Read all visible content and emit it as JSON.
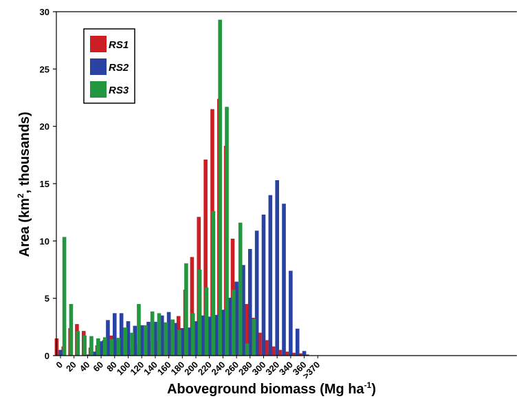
{
  "chart_data": {
    "type": "bar",
    "title": "",
    "xlabel": "Aboveground biomass (Mg ha",
    "xlabel_sup": "-1",
    "xlabel_end": ")",
    "ylabel_pre": "Area (km",
    "ylabel_sup": "2",
    "ylabel_post": ", thousands)",
    "ylim": [
      0,
      30
    ],
    "yticks": [
      "0",
      "5",
      "10",
      "15",
      "20",
      "25",
      "30"
    ],
    "xticks": [
      "0",
      "20",
      "40",
      "60",
      "80",
      "100",
      "120",
      "140",
      "160",
      "180",
      "200",
      "220",
      "240",
      "260",
      "280",
      "300",
      "320",
      "340",
      "360",
      ">370"
    ],
    "categories": [
      "0",
      "10",
      "20",
      "30",
      "40",
      "50",
      "60",
      "70",
      "80",
      "90",
      "100",
      "110",
      "120",
      "130",
      "140",
      "150",
      "160",
      "170",
      "180",
      "190",
      "200",
      "210",
      "220",
      "230",
      "240",
      "250",
      "260",
      "270",
      "280",
      "290",
      "300",
      "310",
      "320",
      "330",
      "340",
      "350",
      "360",
      "370"
    ],
    "legend_position": "top-left",
    "grid": false,
    "series": [
      {
        "name": "RS1",
        "color": "#cc1f24",
        "values": [
          1.5,
          0.8,
          2.4,
          2.75,
          2.15,
          0.7,
          0.9,
          1.35,
          1.75,
          1.4,
          0.5,
          0.6,
          0.95,
          1.2,
          1.3,
          1.25,
          1.55,
          2.15,
          3.45,
          5.75,
          8.6,
          12.1,
          17.1,
          21.5,
          22.4,
          18.3,
          10.2,
          6.0,
          4.5,
          3.3,
          2.0,
          1.35,
          0.8,
          0.5,
          0.35,
          0.25,
          0.2,
          0.1
        ]
      },
      {
        "name": "RS2",
        "color": "#2a43a2",
        "values": [
          0.5,
          0.0,
          0.0,
          0.0,
          0.1,
          0.35,
          1.25,
          3.1,
          3.7,
          3.7,
          3.0,
          2.6,
          2.65,
          2.95,
          2.95,
          3.5,
          3.8,
          2.85,
          2.4,
          2.45,
          3.0,
          3.5,
          3.4,
          3.55,
          4.0,
          5.05,
          6.45,
          7.9,
          9.3,
          10.9,
          12.3,
          14.0,
          15.3,
          13.25,
          7.4,
          2.35,
          0.4,
          0.0
        ]
      },
      {
        "name": "RS3",
        "color": "#23973f",
        "values": [
          10.35,
          4.5,
          2.15,
          1.75,
          1.7,
          1.5,
          1.6,
          1.45,
          1.55,
          2.45,
          2.0,
          4.5,
          2.65,
          3.85,
          3.7,
          2.9,
          3.15,
          2.25,
          8.05,
          3.7,
          7.5,
          5.95,
          12.6,
          29.3,
          21.7,
          5.75,
          11.6,
          1.05,
          3.2,
          0.0,
          0.0,
          0.0,
          0.0,
          0.0,
          0.0,
          0.0,
          0.0,
          0.0
        ]
      }
    ]
  }
}
